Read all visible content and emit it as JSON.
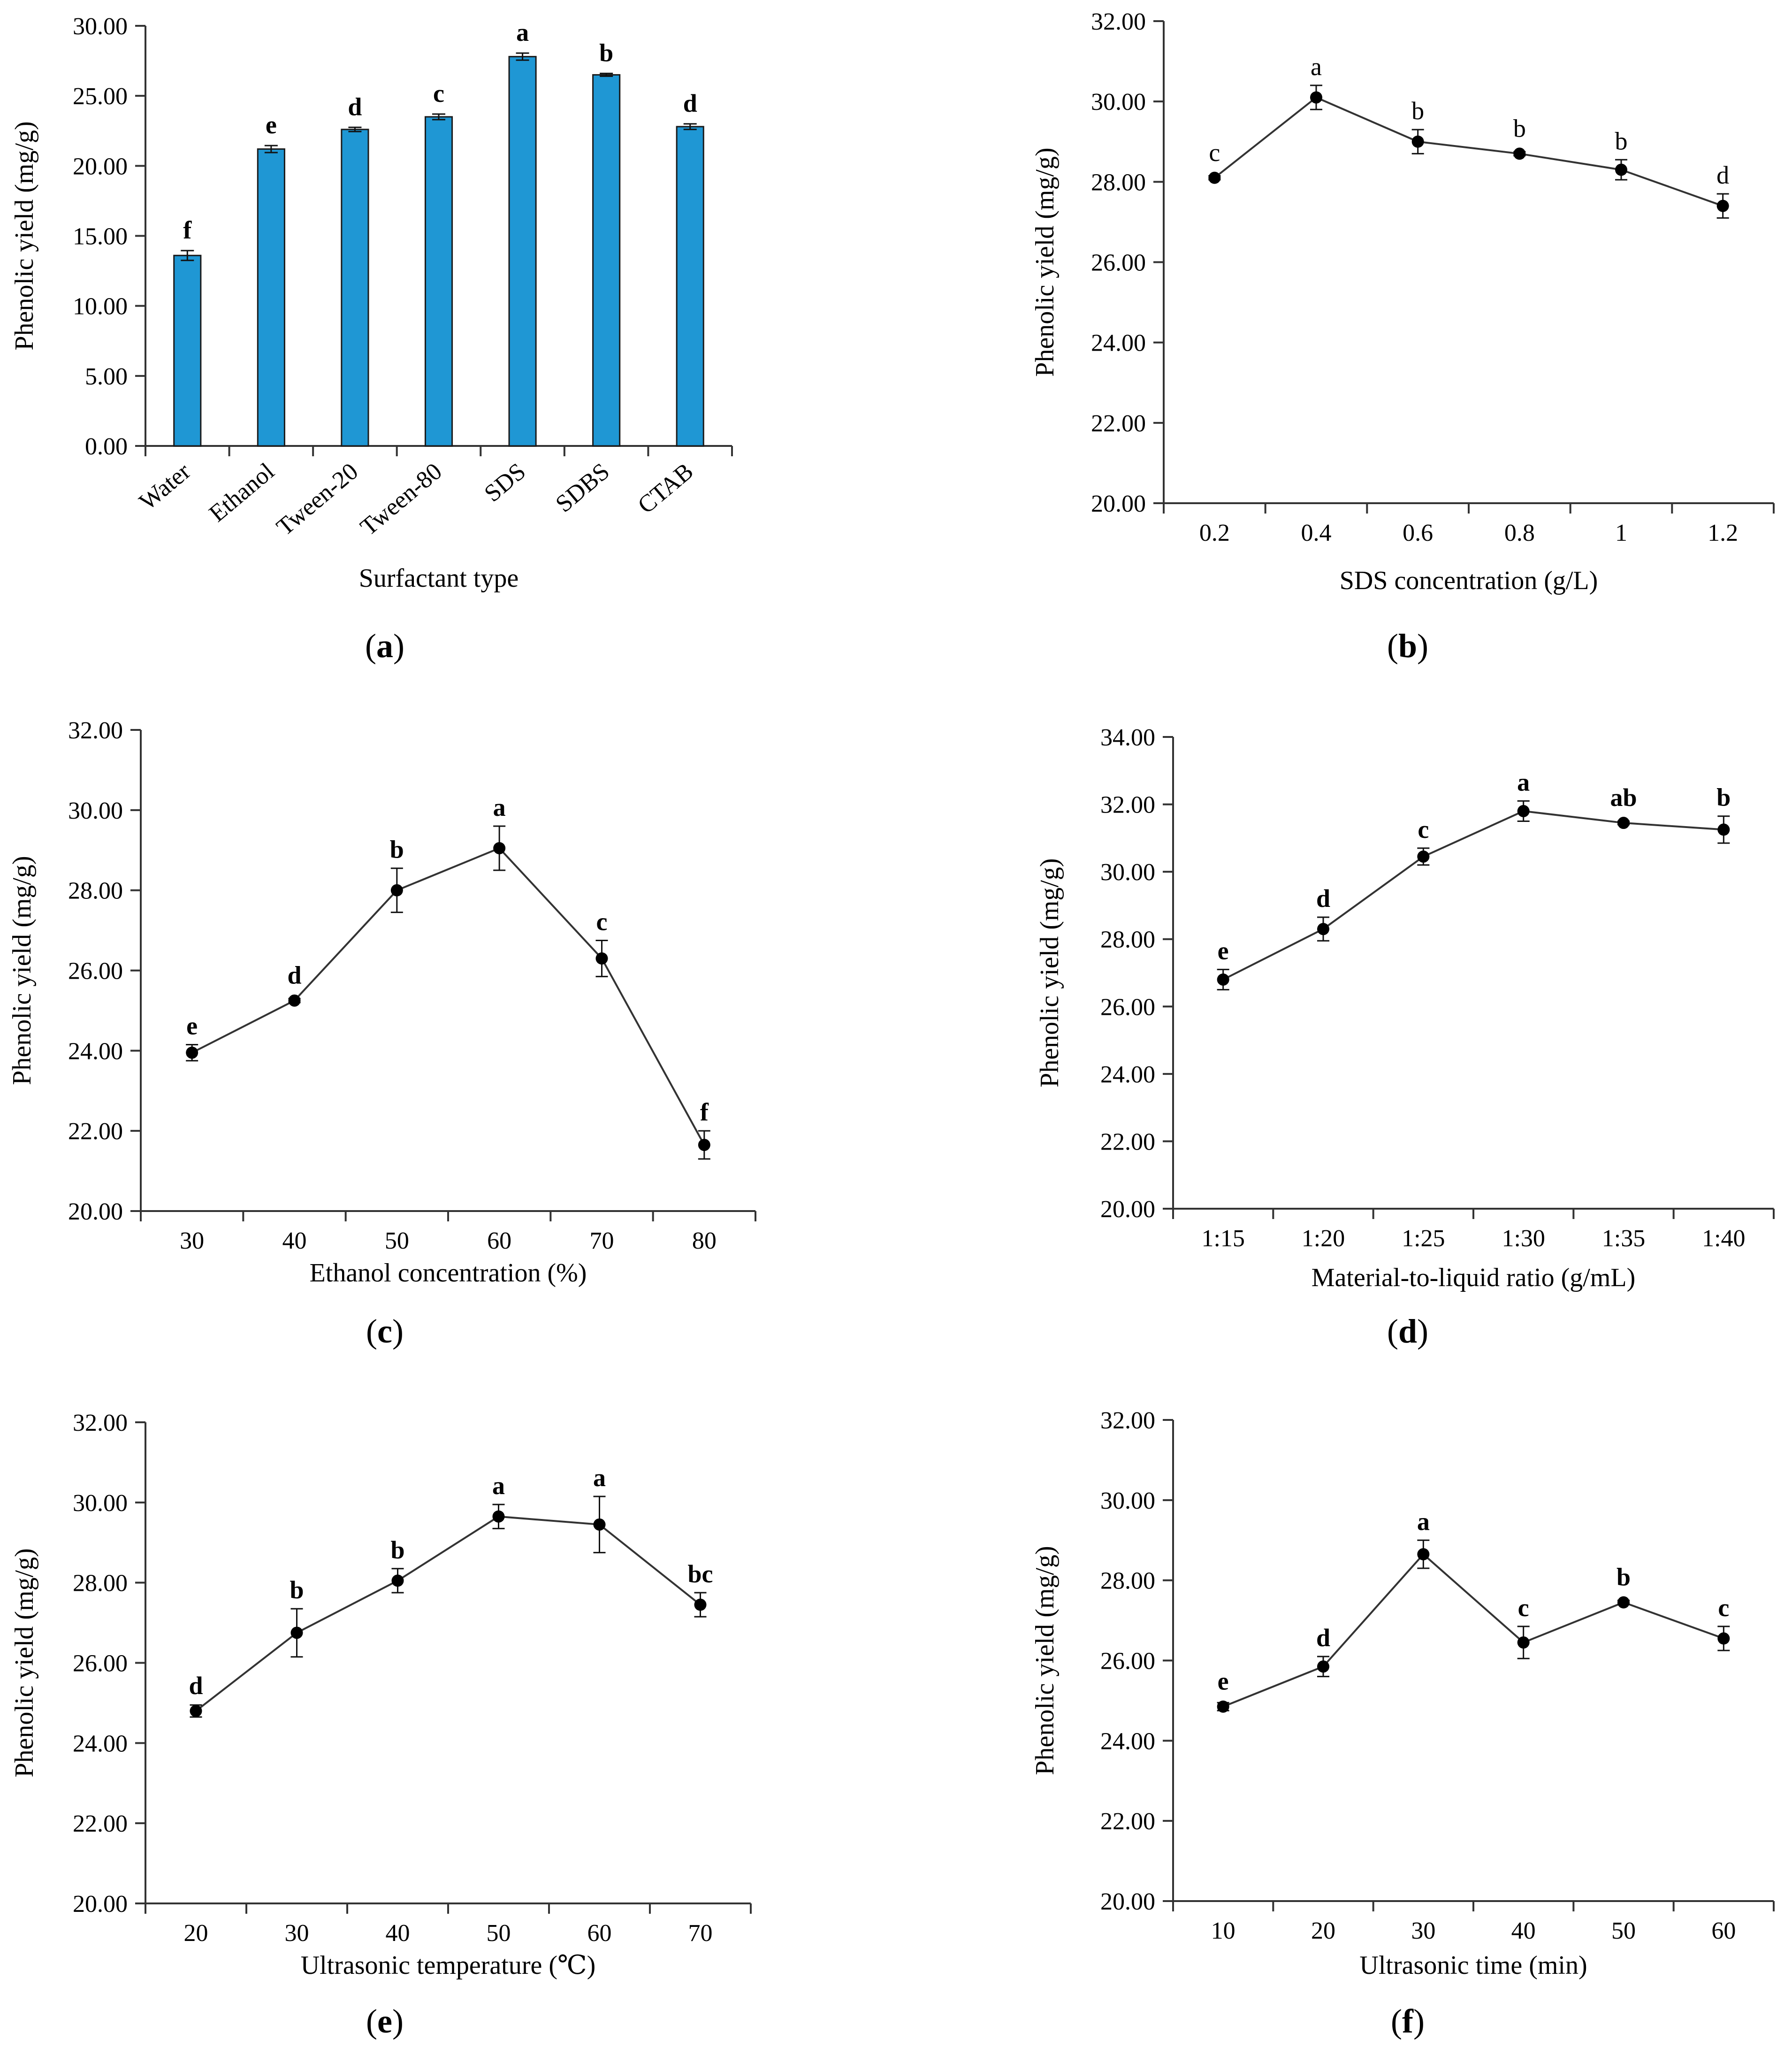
{
  "chart_data": [
    {
      "id": "a",
      "type": "bar",
      "panel_label_prefix": "(",
      "panel_label_letter": "a",
      "panel_label_suffix": ")",
      "xlabel": "Surfactant type",
      "ylabel": "Phenolic yield (mg/g)",
      "ylim": [
        0,
        30
      ],
      "yticks": [
        "0.00",
        "5.00",
        "10.00",
        "15.00",
        "20.00",
        "25.00",
        "30.00"
      ],
      "ytick_values": [
        0,
        5,
        10,
        15,
        20,
        25,
        30
      ],
      "categories": [
        "Water",
        "Ethanol",
        "Tween-20",
        "Tween-80",
        "SDS",
        "SDBS",
        "CTAB"
      ],
      "values": [
        13.6,
        21.2,
        22.6,
        23.5,
        27.8,
        26.5,
        22.8
      ],
      "errors": [
        0.35,
        0.25,
        0.15,
        0.2,
        0.25,
        0.1,
        0.2
      ],
      "significance": [
        "f",
        "e",
        "d",
        "c",
        "a",
        "b",
        "d"
      ],
      "bar_color": "#1f97d4",
      "sig_bold": true
    },
    {
      "id": "b",
      "type": "line",
      "panel_label_prefix": "(",
      "panel_label_letter": "b",
      "panel_label_suffix": ")",
      "xlabel": "SDS concentration (g/L)",
      "ylabel": "Phenolic yield (mg/g)",
      "ylim": [
        20,
        32
      ],
      "yticks": [
        "20.00",
        "22.00",
        "24.00",
        "26.00",
        "28.00",
        "30.00",
        "32.00"
      ],
      "ytick_values": [
        20,
        22,
        24,
        26,
        28,
        30,
        32
      ],
      "categories": [
        "0.2",
        "0.4",
        "0.6",
        "0.8",
        "1",
        "1.2"
      ],
      "values": [
        28.1,
        30.1,
        29.0,
        28.7,
        28.3,
        27.4
      ],
      "errors": [
        0.05,
        0.3,
        0.3,
        0.05,
        0.25,
        0.3
      ],
      "significance": [
        "c",
        "a",
        "b",
        "b",
        "b",
        "d"
      ],
      "sig_bold": false
    },
    {
      "id": "c",
      "type": "line",
      "panel_label_prefix": "(",
      "panel_label_letter": "c",
      "panel_label_suffix": ")",
      "xlabel": "Ethanol concentration (%)",
      "ylabel": "Phenolic yield (mg/g)",
      "ylim": [
        20,
        32
      ],
      "yticks": [
        "20.00",
        "22.00",
        "24.00",
        "26.00",
        "28.00",
        "30.00",
        "32.00"
      ],
      "ytick_values": [
        20,
        22,
        24,
        26,
        28,
        30,
        32
      ],
      "categories": [
        "30",
        "40",
        "50",
        "60",
        "70",
        "80"
      ],
      "values": [
        23.95,
        25.25,
        28.0,
        29.05,
        26.3,
        21.65
      ],
      "errors": [
        0.2,
        0.05,
        0.55,
        0.55,
        0.45,
        0.35
      ],
      "significance": [
        "e",
        "d",
        "b",
        "a",
        "c",
        "f"
      ],
      "sig_bold": true
    },
    {
      "id": "d",
      "type": "line",
      "panel_label_prefix": "(",
      "panel_label_letter": "d",
      "panel_label_suffix": ")",
      "xlabel": "Material-to-liquid ratio (g/mL)",
      "ylabel": "Phenolic yield (mg/g)",
      "ylim": [
        20,
        34
      ],
      "yticks": [
        "20.00",
        "22.00",
        "24.00",
        "26.00",
        "28.00",
        "30.00",
        "32.00",
        "34.00"
      ],
      "ytick_values": [
        20,
        22,
        24,
        26,
        28,
        30,
        32,
        34
      ],
      "categories": [
        "1:15",
        "1:20",
        "1:25",
        "1:30",
        "1:35",
        "1:40"
      ],
      "values": [
        26.8,
        28.3,
        30.45,
        31.8,
        31.45,
        31.25
      ],
      "errors": [
        0.3,
        0.35,
        0.25,
        0.3,
        0.05,
        0.4
      ],
      "significance": [
        "e",
        "d",
        "c",
        "a",
        "ab",
        "b"
      ],
      "sig_bold": true
    },
    {
      "id": "e",
      "type": "line",
      "panel_label_prefix": "(",
      "panel_label_letter": "e",
      "panel_label_suffix": ")",
      "xlabel": "Ultrasonic temperature (℃)",
      "ylabel": "Phenolic yield (mg/g)",
      "ylim": [
        20,
        32
      ],
      "yticks": [
        "20.00",
        "22.00",
        "24.00",
        "26.00",
        "28.00",
        "30.00",
        "32.00"
      ],
      "ytick_values": [
        20,
        22,
        24,
        26,
        28,
        30,
        32
      ],
      "categories": [
        "20",
        "30",
        "40",
        "50",
        "60",
        "70"
      ],
      "values": [
        24.8,
        26.75,
        28.05,
        29.65,
        29.45,
        27.45
      ],
      "errors": [
        0.15,
        0.6,
        0.3,
        0.3,
        0.7,
        0.3
      ],
      "significance": [
        "d",
        "b",
        "b",
        "a",
        "a",
        "bc"
      ],
      "sig_bold": true
    },
    {
      "id": "f",
      "type": "line",
      "panel_label_prefix": "(",
      "panel_label_letter": "f",
      "panel_label_suffix": ")",
      "xlabel": "Ultrasonic time (min)",
      "ylabel": "Phenolic yield (mg/g)",
      "ylim": [
        20,
        32
      ],
      "yticks": [
        "20.00",
        "22.00",
        "24.00",
        "26.00",
        "28.00",
        "30.00",
        "32.00"
      ],
      "ytick_values": [
        20,
        22,
        24,
        26,
        28,
        30,
        32
      ],
      "categories": [
        "10",
        "20",
        "30",
        "40",
        "50",
        "60"
      ],
      "values": [
        24.85,
        25.85,
        28.65,
        26.45,
        27.45,
        26.55
      ],
      "errors": [
        0.1,
        0.25,
        0.35,
        0.4,
        0.05,
        0.3
      ],
      "significance": [
        "e",
        "d",
        "a",
        "c",
        "b",
        "c"
      ],
      "sig_bold": true
    }
  ]
}
